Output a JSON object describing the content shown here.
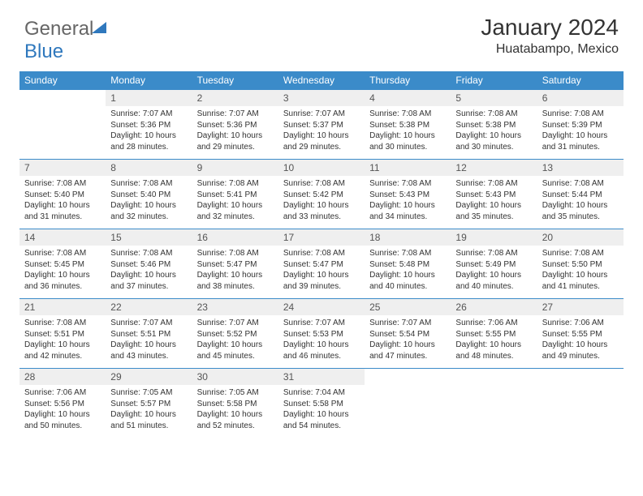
{
  "logo": {
    "part1": "General",
    "part2": "Blue"
  },
  "title": "January 2024",
  "location": "Huatabampo, Mexico",
  "colors": {
    "header_bg": "#3b8bc9",
    "header_text": "#ffffff",
    "daynum_bg": "#efefef",
    "border": "#3b8bc9",
    "body_text": "#333333",
    "logo_accent": "#2f78bd"
  },
  "weekdays": [
    "Sunday",
    "Monday",
    "Tuesday",
    "Wednesday",
    "Thursday",
    "Friday",
    "Saturday"
  ],
  "weeks": [
    [
      null,
      {
        "n": "1",
        "sr": "Sunrise: 7:07 AM",
        "ss": "Sunset: 5:36 PM",
        "d1": "Daylight: 10 hours",
        "d2": "and 28 minutes."
      },
      {
        "n": "2",
        "sr": "Sunrise: 7:07 AM",
        "ss": "Sunset: 5:36 PM",
        "d1": "Daylight: 10 hours",
        "d2": "and 29 minutes."
      },
      {
        "n": "3",
        "sr": "Sunrise: 7:07 AM",
        "ss": "Sunset: 5:37 PM",
        "d1": "Daylight: 10 hours",
        "d2": "and 29 minutes."
      },
      {
        "n": "4",
        "sr": "Sunrise: 7:08 AM",
        "ss": "Sunset: 5:38 PM",
        "d1": "Daylight: 10 hours",
        "d2": "and 30 minutes."
      },
      {
        "n": "5",
        "sr": "Sunrise: 7:08 AM",
        "ss": "Sunset: 5:38 PM",
        "d1": "Daylight: 10 hours",
        "d2": "and 30 minutes."
      },
      {
        "n": "6",
        "sr": "Sunrise: 7:08 AM",
        "ss": "Sunset: 5:39 PM",
        "d1": "Daylight: 10 hours",
        "d2": "and 31 minutes."
      }
    ],
    [
      {
        "n": "7",
        "sr": "Sunrise: 7:08 AM",
        "ss": "Sunset: 5:40 PM",
        "d1": "Daylight: 10 hours",
        "d2": "and 31 minutes."
      },
      {
        "n": "8",
        "sr": "Sunrise: 7:08 AM",
        "ss": "Sunset: 5:40 PM",
        "d1": "Daylight: 10 hours",
        "d2": "and 32 minutes."
      },
      {
        "n": "9",
        "sr": "Sunrise: 7:08 AM",
        "ss": "Sunset: 5:41 PM",
        "d1": "Daylight: 10 hours",
        "d2": "and 32 minutes."
      },
      {
        "n": "10",
        "sr": "Sunrise: 7:08 AM",
        "ss": "Sunset: 5:42 PM",
        "d1": "Daylight: 10 hours",
        "d2": "and 33 minutes."
      },
      {
        "n": "11",
        "sr": "Sunrise: 7:08 AM",
        "ss": "Sunset: 5:43 PM",
        "d1": "Daylight: 10 hours",
        "d2": "and 34 minutes."
      },
      {
        "n": "12",
        "sr": "Sunrise: 7:08 AM",
        "ss": "Sunset: 5:43 PM",
        "d1": "Daylight: 10 hours",
        "d2": "and 35 minutes."
      },
      {
        "n": "13",
        "sr": "Sunrise: 7:08 AM",
        "ss": "Sunset: 5:44 PM",
        "d1": "Daylight: 10 hours",
        "d2": "and 35 minutes."
      }
    ],
    [
      {
        "n": "14",
        "sr": "Sunrise: 7:08 AM",
        "ss": "Sunset: 5:45 PM",
        "d1": "Daylight: 10 hours",
        "d2": "and 36 minutes."
      },
      {
        "n": "15",
        "sr": "Sunrise: 7:08 AM",
        "ss": "Sunset: 5:46 PM",
        "d1": "Daylight: 10 hours",
        "d2": "and 37 minutes."
      },
      {
        "n": "16",
        "sr": "Sunrise: 7:08 AM",
        "ss": "Sunset: 5:47 PM",
        "d1": "Daylight: 10 hours",
        "d2": "and 38 minutes."
      },
      {
        "n": "17",
        "sr": "Sunrise: 7:08 AM",
        "ss": "Sunset: 5:47 PM",
        "d1": "Daylight: 10 hours",
        "d2": "and 39 minutes."
      },
      {
        "n": "18",
        "sr": "Sunrise: 7:08 AM",
        "ss": "Sunset: 5:48 PM",
        "d1": "Daylight: 10 hours",
        "d2": "and 40 minutes."
      },
      {
        "n": "19",
        "sr": "Sunrise: 7:08 AM",
        "ss": "Sunset: 5:49 PM",
        "d1": "Daylight: 10 hours",
        "d2": "and 40 minutes."
      },
      {
        "n": "20",
        "sr": "Sunrise: 7:08 AM",
        "ss": "Sunset: 5:50 PM",
        "d1": "Daylight: 10 hours",
        "d2": "and 41 minutes."
      }
    ],
    [
      {
        "n": "21",
        "sr": "Sunrise: 7:08 AM",
        "ss": "Sunset: 5:51 PM",
        "d1": "Daylight: 10 hours",
        "d2": "and 42 minutes."
      },
      {
        "n": "22",
        "sr": "Sunrise: 7:07 AM",
        "ss": "Sunset: 5:51 PM",
        "d1": "Daylight: 10 hours",
        "d2": "and 43 minutes."
      },
      {
        "n": "23",
        "sr": "Sunrise: 7:07 AM",
        "ss": "Sunset: 5:52 PM",
        "d1": "Daylight: 10 hours",
        "d2": "and 45 minutes."
      },
      {
        "n": "24",
        "sr": "Sunrise: 7:07 AM",
        "ss": "Sunset: 5:53 PM",
        "d1": "Daylight: 10 hours",
        "d2": "and 46 minutes."
      },
      {
        "n": "25",
        "sr": "Sunrise: 7:07 AM",
        "ss": "Sunset: 5:54 PM",
        "d1": "Daylight: 10 hours",
        "d2": "and 47 minutes."
      },
      {
        "n": "26",
        "sr": "Sunrise: 7:06 AM",
        "ss": "Sunset: 5:55 PM",
        "d1": "Daylight: 10 hours",
        "d2": "and 48 minutes."
      },
      {
        "n": "27",
        "sr": "Sunrise: 7:06 AM",
        "ss": "Sunset: 5:55 PM",
        "d1": "Daylight: 10 hours",
        "d2": "and 49 minutes."
      }
    ],
    [
      {
        "n": "28",
        "sr": "Sunrise: 7:06 AM",
        "ss": "Sunset: 5:56 PM",
        "d1": "Daylight: 10 hours",
        "d2": "and 50 minutes."
      },
      {
        "n": "29",
        "sr": "Sunrise: 7:05 AM",
        "ss": "Sunset: 5:57 PM",
        "d1": "Daylight: 10 hours",
        "d2": "and 51 minutes."
      },
      {
        "n": "30",
        "sr": "Sunrise: 7:05 AM",
        "ss": "Sunset: 5:58 PM",
        "d1": "Daylight: 10 hours",
        "d2": "and 52 minutes."
      },
      {
        "n": "31",
        "sr": "Sunrise: 7:04 AM",
        "ss": "Sunset: 5:58 PM",
        "d1": "Daylight: 10 hours",
        "d2": "and 54 minutes."
      },
      null,
      null,
      null
    ]
  ]
}
